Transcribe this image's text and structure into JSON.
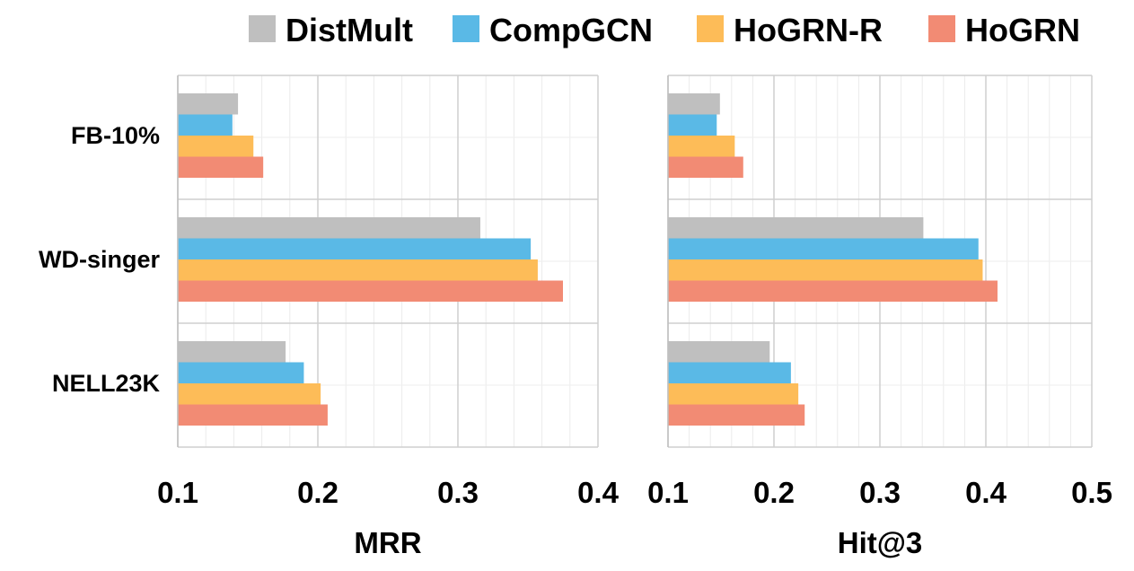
{
  "chart_data": {
    "legend": [
      {
        "name": "DistMult",
        "color": "#BFBFBF"
      },
      {
        "name": "CompGCN",
        "color": "#5AB9E6"
      },
      {
        "name": "HoGRN-R",
        "color": "#FDBC58"
      },
      {
        "name": "HoGRN",
        "color": "#F28B74"
      }
    ],
    "legend_position": "top-right",
    "categories": [
      "FB-10%",
      "WD-singer",
      "NELL23K"
    ],
    "panels": [
      {
        "type": "bar",
        "orientation": "horizontal",
        "xlabel": "MRR",
        "xlim": [
          0.1,
          0.4
        ],
        "xticks": [
          "0.1",
          "0.2",
          "0.3",
          "0.4"
        ],
        "grid": true,
        "series": [
          {
            "name": "DistMult",
            "values": [
              0.143,
              0.316,
              0.177
            ]
          },
          {
            "name": "CompGCN",
            "values": [
              0.139,
              0.352,
              0.19
            ]
          },
          {
            "name": "HoGRN-R",
            "values": [
              0.154,
              0.357,
              0.202
            ]
          },
          {
            "name": "HoGRN",
            "values": [
              0.161,
              0.375,
              0.207
            ]
          }
        ]
      },
      {
        "type": "bar",
        "orientation": "horizontal",
        "xlabel": "Hit@3",
        "xlim": [
          0.1,
          0.5
        ],
        "xticks": [
          "0.1",
          "0.2",
          "0.3",
          "0.4",
          "0.5"
        ],
        "grid": true,
        "series": [
          {
            "name": "DistMult",
            "values": [
              0.149,
              0.341,
              0.196
            ]
          },
          {
            "name": "CompGCN",
            "values": [
              0.146,
              0.393,
              0.216
            ]
          },
          {
            "name": "HoGRN-R",
            "values": [
              0.163,
              0.397,
              0.223
            ]
          },
          {
            "name": "HoGRN",
            "values": [
              0.171,
              0.411,
              0.229
            ]
          }
        ]
      }
    ]
  }
}
